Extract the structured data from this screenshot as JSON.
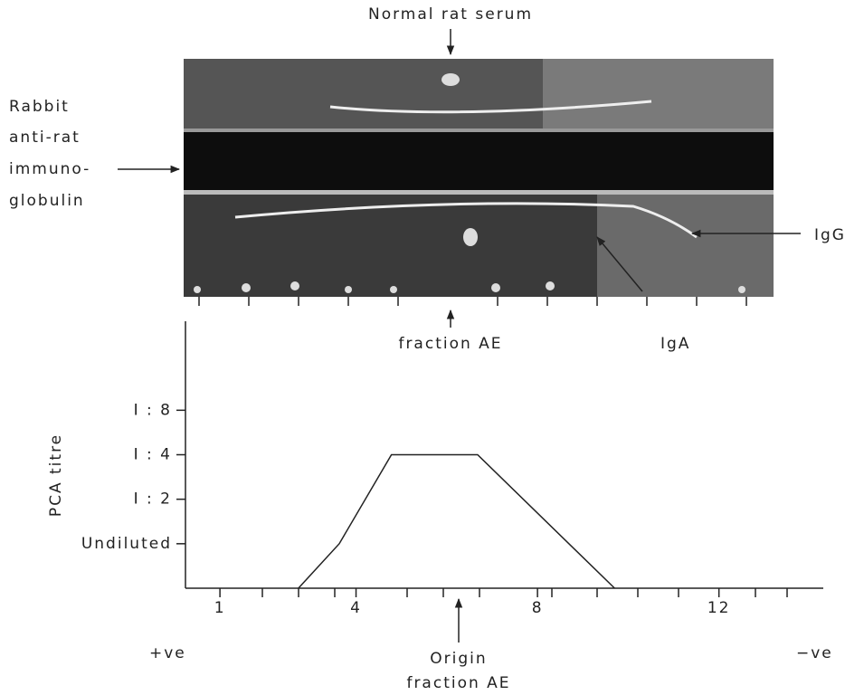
{
  "chart_data": {
    "type": "line",
    "ylabel": "PCA titre",
    "x": [
      2.73,
      3.63,
      4.78,
      6.68,
      9.7
    ],
    "series": [
      {
        "color": "#222222",
        "values": [
          0,
          1,
          3,
          3,
          0
        ]
      }
    ],
    "xlim": [
      0.24,
      14.3
    ],
    "xticks": [
      1,
      4,
      8,
      12
    ],
    "ylim": [
      0,
      6
    ],
    "yticks": [
      {
        "value": 1,
        "label": "Undiluted"
      },
      {
        "value": 2,
        "label": "I : 2"
      },
      {
        "value": 3,
        "label": "I : 4"
      },
      {
        "value": 4,
        "label": "I : 8"
      }
    ],
    "annotations": {
      "left": "+ve",
      "right": "−ve",
      "origin": [
        "Origin",
        "fraction AE"
      ]
    }
  },
  "photo": {
    "top_label": "Normal rat serum",
    "left_label": [
      "Rabbit",
      "anti-rat",
      "immuno-",
      "globulin"
    ],
    "bottom_label": "fraction AE",
    "iga": "IgA",
    "igg": "IgG"
  }
}
